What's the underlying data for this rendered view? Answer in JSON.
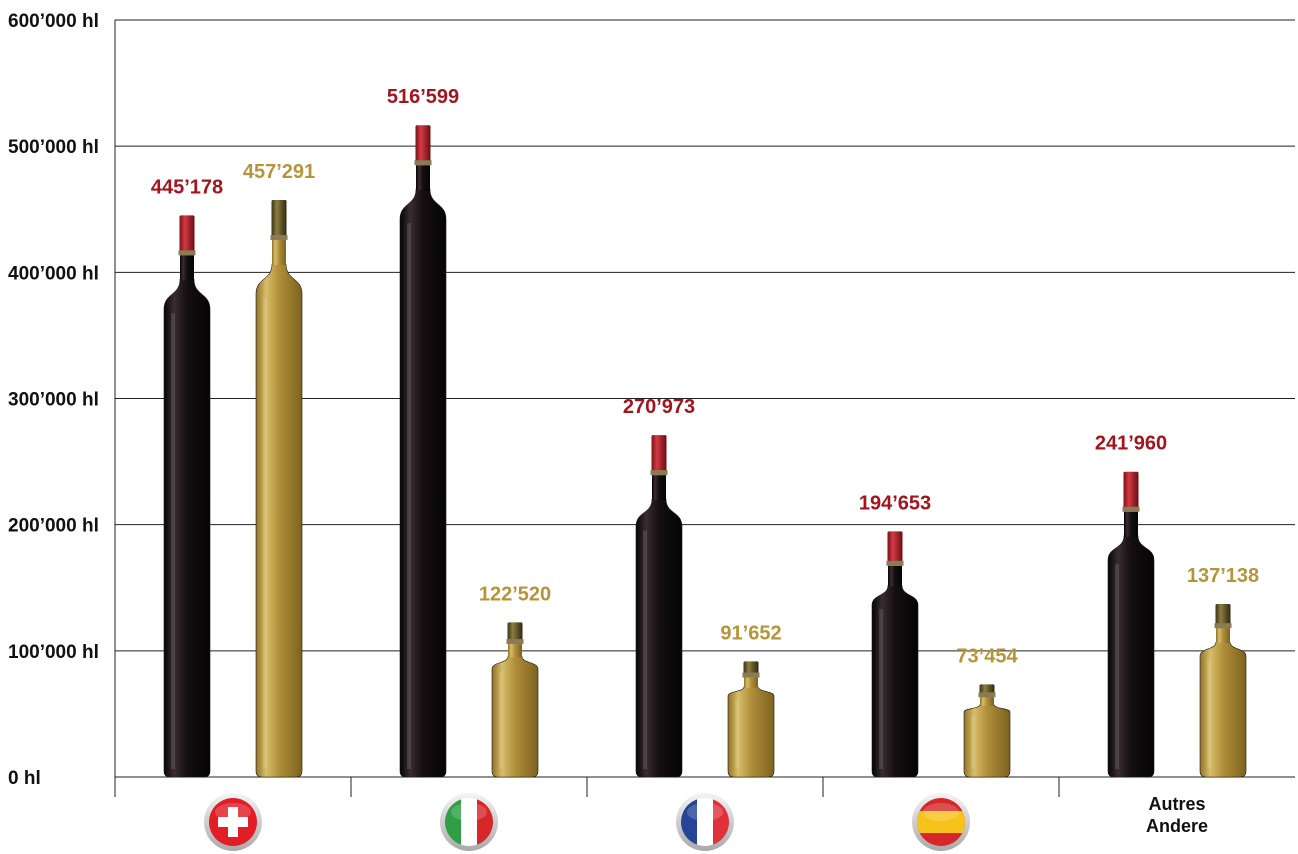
{
  "chart_data": {
    "type": "bar",
    "categories": [
      "Suisse",
      "Italie",
      "France",
      "Espagne",
      "Autres/Andere"
    ],
    "category_icons": [
      "swiss-flag-icon",
      "italian-flag-icon",
      "french-flag-icon",
      "spanish-flag-icon",
      null
    ],
    "other_label_lines": [
      "Autres",
      "Andere"
    ],
    "series": [
      {
        "key": "red",
        "color": "#a3141e",
        "bottle_color": "#1a1214",
        "values": [
          445178,
          516599,
          270973,
          194653,
          241960
        ],
        "labels": [
          "445’178",
          "516’599",
          "270’973",
          "194’653",
          "241’960"
        ]
      },
      {
        "key": "white",
        "color": "#b5953a",
        "bottle_color": "#b08f3a",
        "values": [
          457291,
          122520,
          91652,
          73454,
          137138
        ],
        "labels": [
          "457’291",
          "122’520",
          "91’652",
          "73’454",
          "137’138"
        ]
      }
    ],
    "ylim": [
      0,
      600000
    ],
    "yticks": [
      0,
      100000,
      200000,
      300000,
      400000,
      500000,
      600000
    ],
    "ytick_labels": [
      "0 hl",
      "100’000 hl",
      "200’000 hl",
      "300’000 hl",
      "400’000 hl",
      "500’000 hl",
      "600’000 hl"
    ],
    "grid": true,
    "legend": "none"
  }
}
